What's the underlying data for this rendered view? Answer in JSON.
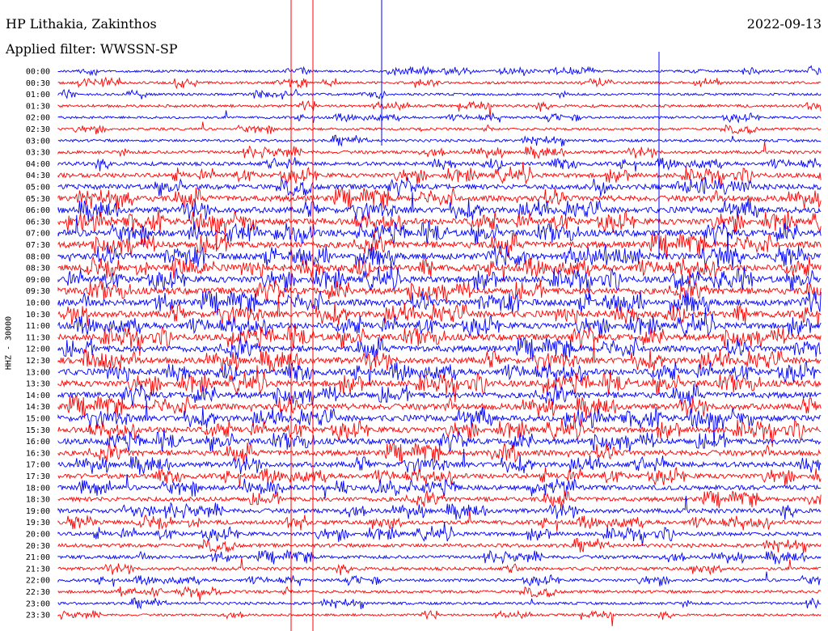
{
  "header": {
    "station": "HP Lithakia, Zakinthos",
    "date": "2022-09-13",
    "filter": "Applied filter: WWSSN-SP"
  },
  "chart_data": {
    "type": "line",
    "channel_label": "HHZ - 30000",
    "trace_colors": [
      "#0000ff",
      "#ff0000"
    ],
    "row_labels": [
      "00:00",
      "00:30",
      "01:00",
      "01:30",
      "02:00",
      "02:30",
      "03:00",
      "03:30",
      "04:00",
      "04:30",
      "05:00",
      "05:30",
      "06:00",
      "06:30",
      "07:00",
      "07:30",
      "08:00",
      "08:30",
      "09:00",
      "09:30",
      "10:00",
      "10:30",
      "11:00",
      "11:30",
      "12:00",
      "12:30",
      "13:00",
      "13:30",
      "14:00",
      "14:30",
      "15:00",
      "15:30",
      "16:00",
      "16:30",
      "17:00",
      "17:30",
      "18:00",
      "18:30",
      "19:00",
      "19:30",
      "20:00",
      "20:30",
      "21:00",
      "21:30",
      "22:00",
      "22:30",
      "23:00",
      "23:30"
    ],
    "activity_level": [
      0.15,
      0.18,
      0.15,
      0.2,
      0.15,
      0.15,
      0.2,
      0.3,
      0.4,
      0.55,
      0.7,
      0.8,
      0.85,
      0.9,
      0.95,
      0.95,
      0.95,
      0.95,
      0.95,
      0.95,
      0.95,
      0.95,
      0.9,
      0.9,
      0.9,
      0.9,
      0.9,
      0.9,
      0.85,
      0.85,
      0.85,
      0.8,
      0.8,
      0.75,
      0.7,
      0.65,
      0.6,
      0.55,
      0.55,
      0.5,
      0.45,
      0.4,
      0.35,
      0.3,
      0.25,
      0.25,
      0.2,
      0.12
    ],
    "grid": false
  }
}
